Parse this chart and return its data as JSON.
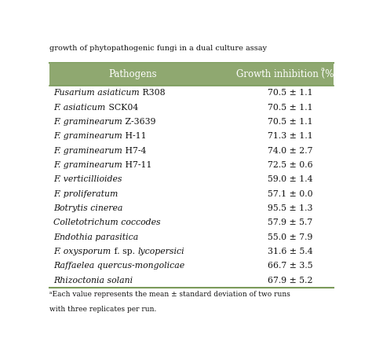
{
  "title": "growth of phytopathogenic fungi in a dual culture assay",
  "col1_header": "Pathogens",
  "col2_header": "Growth inhibition (%)",
  "col2_superscript": "a",
  "rows": [
    [
      [
        "italic",
        "Fusarium asiaticum"
      ],
      [
        "normal",
        " R308"
      ]
    ],
    [
      [
        "italic",
        "F. asiaticum"
      ],
      [
        "normal",
        " SCK04"
      ]
    ],
    [
      [
        "italic",
        "F. graminearum"
      ],
      [
        "normal",
        " Z-3639"
      ]
    ],
    [
      [
        "italic",
        "F. graminearum"
      ],
      [
        "normal",
        " H-11"
      ]
    ],
    [
      [
        "italic",
        "F. graminearum"
      ],
      [
        "normal",
        " H7-4"
      ]
    ],
    [
      [
        "italic",
        "F. graminearum"
      ],
      [
        "normal",
        " H7-11"
      ]
    ],
    [
      [
        "italic",
        "F. verticillioides"
      ],
      [
        "normal",
        ""
      ]
    ],
    [
      [
        "italic",
        "F. proliferatum"
      ],
      [
        "normal",
        ""
      ]
    ],
    [
      [
        "italic",
        "Botrytis cinerea"
      ],
      [
        "normal",
        ""
      ]
    ],
    [
      [
        "italic",
        "Colletotrichum coccodes"
      ],
      [
        "normal",
        ""
      ]
    ],
    [
      [
        "italic",
        "Endothia parasitica"
      ],
      [
        "normal",
        ""
      ]
    ],
    [
      [
        "italic",
        "F. oxysporum"
      ],
      [
        "normal",
        " f. sp. "
      ],
      [
        "italic",
        "lycopersici"
      ]
    ],
    [
      [
        "italic",
        "Raffaelea quercus-mongolicae"
      ],
      [
        "normal",
        ""
      ]
    ],
    [
      [
        "italic",
        "Rhizoctonia solani"
      ],
      [
        "normal",
        ""
      ]
    ]
  ],
  "values": [
    "70.5 ± 1.1",
    "70.5 ± 1.1",
    "70.5 ± 1.1",
    "71.3 ± 1.1",
    "74.0 ± 2.7",
    "72.5 ± 0.6",
    "59.0 ± 1.4",
    "57.1 ± 0.0",
    "95.5 ± 1.3",
    "57.9 ± 5.7",
    "55.0 ± 7.9",
    "31.6 ± 5.4",
    "66.7 ± 3.5",
    "67.9 ± 5.2"
  ],
  "footnote_line1": "ᵃEach value represents the mean ± standard deviation of two runs",
  "footnote_line2": "with three replicates per run.",
  "header_bg": "#8fa870",
  "border_color": "#7a9a5a",
  "text_color": "#111111",
  "title_color": "#111111",
  "white": "#ffffff"
}
